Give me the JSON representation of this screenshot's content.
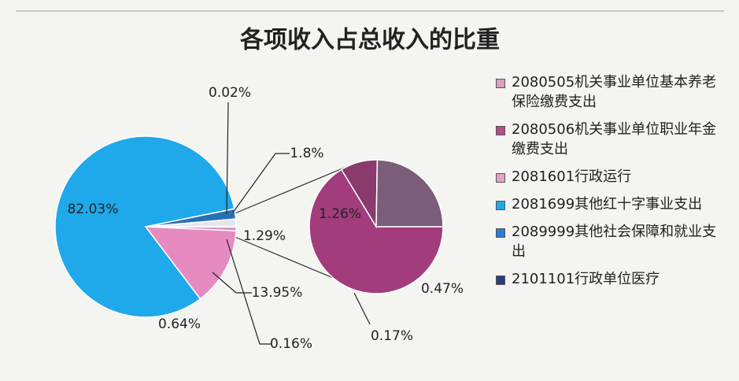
{
  "chart_data": {
    "type": "pie-of-pie",
    "title": "各项收入占总收入的比重",
    "main": {
      "values": [
        0.02,
        1.8,
        1.29,
        0.16,
        0.64,
        13.95,
        82.03
      ],
      "value_labels": [
        "0.02%",
        "1.8%",
        "1.29%",
        "0.16%",
        "0.64%",
        "13.95%",
        "82.03%"
      ],
      "colors": [
        "#c06090",
        "#2a6fb5",
        "#e4e4f2",
        "#1f4e8a",
        "#d98ab9",
        "#e58bc0",
        "#1fa8ea"
      ]
    },
    "secondary": {
      "values": [
        1.26,
        0.17,
        0.47
      ],
      "value_labels": [
        "1.26%",
        "0.17%",
        "0.47%"
      ],
      "colors": [
        "#a23c7c",
        "#8a3a6c",
        "#7b5d79"
      ]
    },
    "legend": [
      {
        "name": "2080505机关事业单位基本养老保险缴费支出",
        "color": "#d9a0c0"
      },
      {
        "name": "2080506机关事业单位职业年金缴费支出",
        "color": "#b84a86"
      },
      {
        "name": "2081601行政运行",
        "color": "#e3a3c8"
      },
      {
        "name": "2081699其他红十字事业支出",
        "color": "#1fa8ea"
      },
      {
        "name": "2089999其他社会保障和就业支出",
        "color": "#2a7fd0"
      },
      {
        "name": "2101101行政单位医疗",
        "color": "#2c3f7a"
      }
    ]
  }
}
